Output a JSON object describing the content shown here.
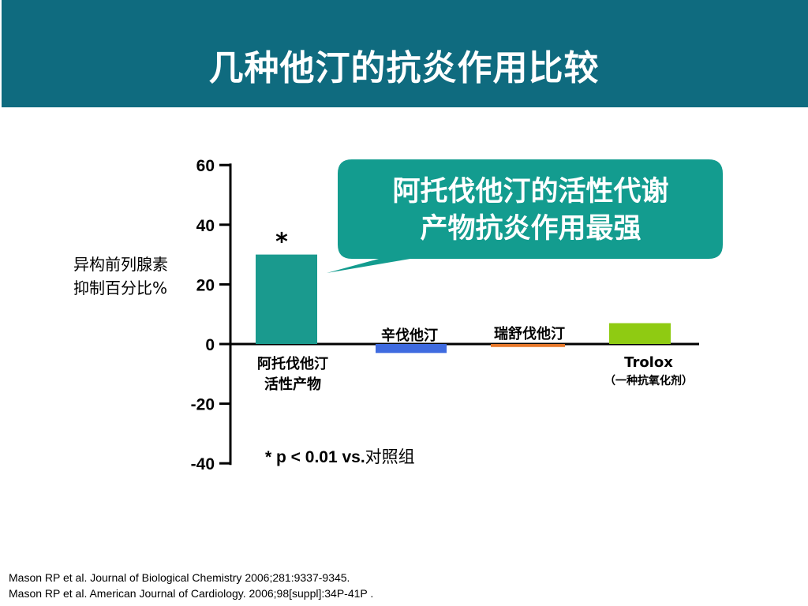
{
  "slide": {
    "title": "几种他汀的抗炎作用比较",
    "callout": "阿托伐他汀的活性代谢\n产物抗炎作用最强",
    "significance_note": {
      "stat": "* p < 0.01 vs.",
      "suffix": "对照组"
    },
    "references": [
      "Mason RP et al.  Journal of Biological Chemistry 2006;281:9337-9345.",
      "Mason RP et al. American Journal of Cardiology. 2006;98[suppl]:34P-41P ."
    ]
  },
  "colors": {
    "title_bar": "#0f6b7f",
    "callout": "#139c8f",
    "series": [
      "#1a9a8e",
      "#3f6be0",
      "#e8782a",
      "#8fcb12"
    ]
  },
  "chart_data": {
    "type": "bar",
    "ylabel": "异构前列腺素\n抑制百分比%",
    "ylim": [
      -40,
      60
    ],
    "yticks": [
      60,
      40,
      20,
      0,
      -20,
      -40
    ],
    "categories": [
      "阿托伐他汀\n活性产物",
      "辛伐他汀",
      "瑞舒伐他汀",
      "Trolox"
    ],
    "category_subtitles": [
      "",
      "",
      "",
      "（一种抗氧化剂）"
    ],
    "values": [
      30,
      -3,
      -1,
      7
    ],
    "annotations": [
      {
        "category": "阿托伐他汀\n活性产物",
        "text": "*"
      }
    ]
  }
}
